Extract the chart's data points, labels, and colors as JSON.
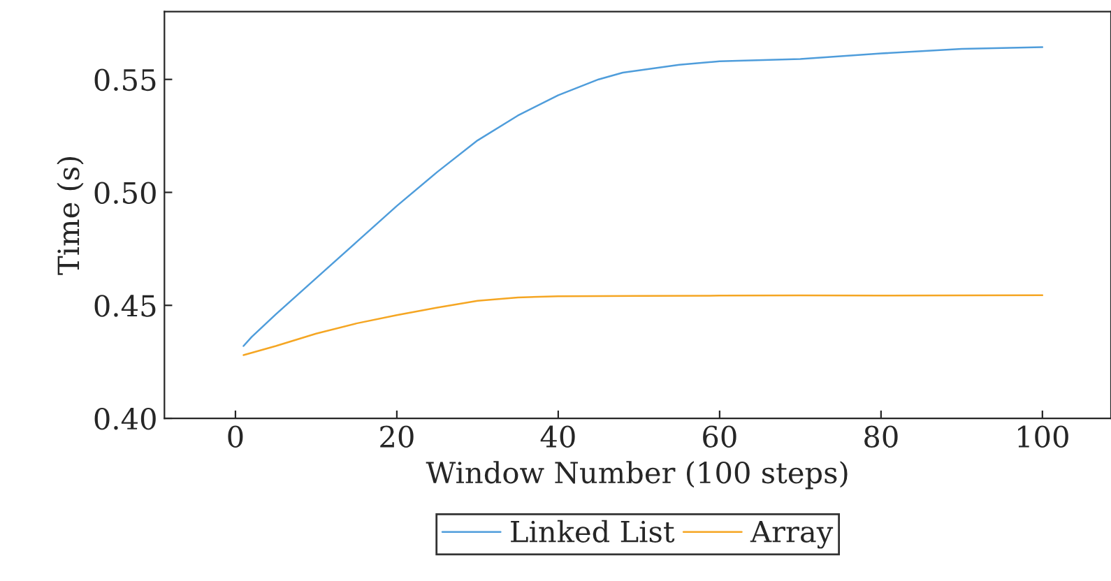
{
  "chart_data": {
    "type": "line",
    "xlabel": "Window Number (100 steps)",
    "ylabel": "Time (s)",
    "xlim": [
      -8.8,
      108.5
    ],
    "ylim": [
      0.4,
      0.58
    ],
    "xticks": [
      0,
      20,
      40,
      60,
      80,
      100
    ],
    "yticks": [
      {
        "value": 0.4,
        "label": "0.40"
      },
      {
        "value": 0.45,
        "label": "0.45"
      },
      {
        "value": 0.5,
        "label": "0.50"
      },
      {
        "value": 0.55,
        "label": "0.55"
      }
    ],
    "grid": false,
    "legend": "bottom",
    "marker": "none",
    "line_style": "solid",
    "series": [
      {
        "name": "Linked List",
        "color": "#4f9ddb",
        "x": [
          1,
          2,
          5,
          10,
          15,
          20,
          25,
          30,
          35,
          40,
          45,
          48,
          55,
          60,
          70,
          80,
          90,
          100
        ],
        "values": [
          0.432,
          0.436,
          0.446,
          0.462,
          0.478,
          0.494,
          0.509,
          0.523,
          0.534,
          0.543,
          0.55,
          0.553,
          0.5565,
          0.558,
          0.559,
          0.5615,
          0.5635,
          0.5643
        ]
      },
      {
        "name": "Array",
        "color": "#f5a623",
        "x": [
          1,
          5,
          10,
          15,
          20,
          25,
          30,
          35,
          40,
          50,
          60,
          70,
          80,
          90,
          100
        ],
        "values": [
          0.428,
          0.432,
          0.4375,
          0.442,
          0.4457,
          0.449,
          0.452,
          0.4535,
          0.454,
          0.4542,
          0.4543,
          0.4544,
          0.4543,
          0.4544,
          0.4545
        ]
      }
    ]
  }
}
